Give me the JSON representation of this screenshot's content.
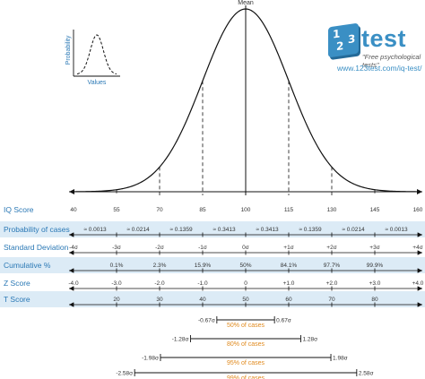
{
  "chart_data": {
    "type": "line",
    "title": "",
    "mean_label": "Mean",
    "curve": "normal distribution",
    "mean": 100,
    "sd": 15,
    "xlim": [
      40,
      160
    ],
    "sigma_markers": [
      55,
      70,
      85,
      115,
      130,
      145
    ],
    "inset": {
      "ylabel": "Probability",
      "xlabel": "Values"
    },
    "rows": [
      {
        "label": "IQ Score",
        "band": false,
        "values": [
          "40",
          "55",
          "70",
          "85",
          "100",
          "115",
          "130",
          "145",
          "160"
        ]
      },
      {
        "label": "Probability of cases",
        "band": true,
        "between": true,
        "values": [
          "≈ 0.0013",
          "≈ 0.0214",
          "≈ 0.1359",
          "≈ 0.3413",
          "≈ 0.3413",
          "≈ 0.1359",
          "≈ 0.0214",
          "≈ 0.0013"
        ]
      },
      {
        "label": "Standard Deviation",
        "band": false,
        "values": [
          "-4σ",
          "-3σ",
          "-2σ",
          "-1σ",
          "0σ",
          "+1σ",
          "+2σ",
          "+3σ",
          "+4σ"
        ]
      },
      {
        "label": "Cumulative %",
        "band": true,
        "values": [
          "",
          "0.1%",
          "2.3%",
          "15.9%",
          "50%",
          "84.1%",
          "97.7%",
          "99.9%",
          ""
        ]
      },
      {
        "label": "Z Score",
        "band": false,
        "values": [
          "-4.0",
          "-3.0",
          "-2.0",
          "-1.0",
          "0",
          "+1.0",
          "+2.0",
          "+3.0",
          "+4.0"
        ]
      },
      {
        "label": "T Score",
        "band": true,
        "values": [
          "",
          "20",
          "30",
          "40",
          "50",
          "60",
          "70",
          "80",
          ""
        ]
      }
    ],
    "intervals": [
      {
        "z": 0.67,
        "left_label": "-0.67σ",
        "right_label": "0.67σ",
        "label": "50% of cases"
      },
      {
        "z": 1.28,
        "left_label": "-1.28σ",
        "right_label": "1.28σ",
        "label": "80% of cases"
      },
      {
        "z": 1.98,
        "left_label": "-1.98σ",
        "right_label": "1.98σ",
        "label": "95% of cases"
      },
      {
        "z": 2.58,
        "left_label": "-2.58σ",
        "right_label": "2.58σ",
        "label": "99% of cases"
      }
    ],
    "colors": {
      "axis": "#111111",
      "row_label": "#2a78b5",
      "band": "#dcebf6",
      "interval_label": "#e08a1e",
      "text": "#333333"
    }
  },
  "logo": {
    "num_1": "1",
    "num_2": "2",
    "num_3": "3",
    "name": "test",
    "tagline": "\"Free psychological tests\"",
    "url": "www.123test.com/iq-test/"
  }
}
